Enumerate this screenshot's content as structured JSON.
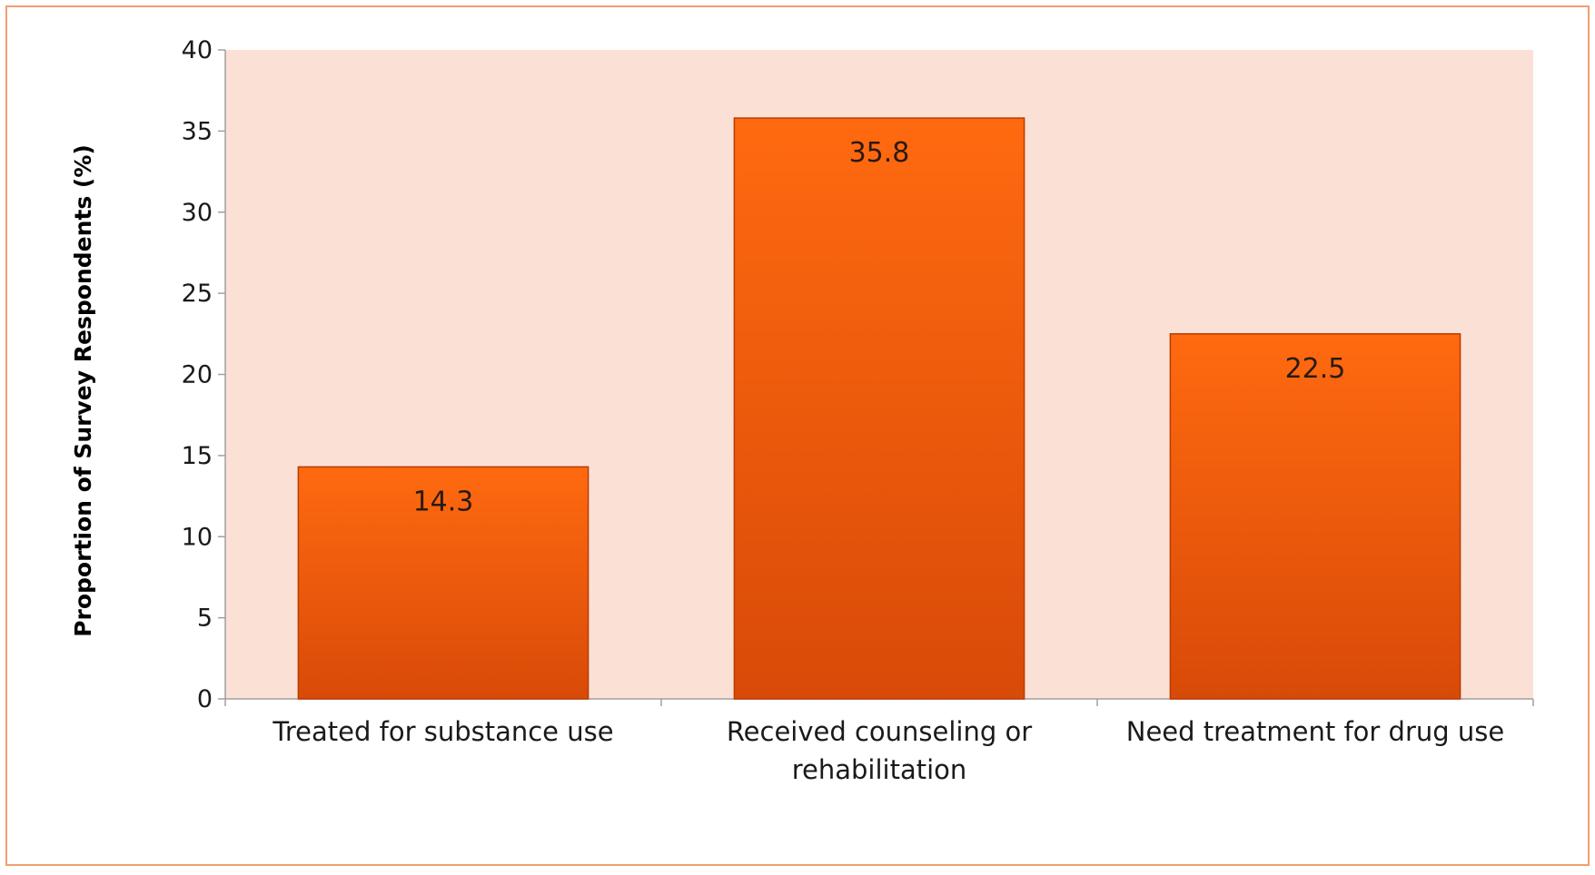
{
  "chart_data": {
    "type": "bar",
    "categories": [
      [
        "Treated for substance use"
      ],
      [
        "Received counseling or",
        "rehabilitation"
      ],
      [
        "Need treatment for drug use"
      ]
    ],
    "values": [
      14.3,
      35.8,
      22.5
    ],
    "data_labels": [
      "14.3",
      "35.8",
      "22.5"
    ],
    "ylabel": "Proportion of Survey Respondents  (%)",
    "ylim": [
      0,
      40
    ],
    "yticks": [
      0,
      5,
      10,
      15,
      20,
      25,
      30,
      35,
      40
    ],
    "grid": false,
    "legend": "none",
    "colors": {
      "bar_top": "#ff6a10",
      "bar_bottom": "#d84a08",
      "bar_edge": "#b83c00",
      "plot_background": "#fbe0d6",
      "axis": "#a0a0a0"
    }
  }
}
